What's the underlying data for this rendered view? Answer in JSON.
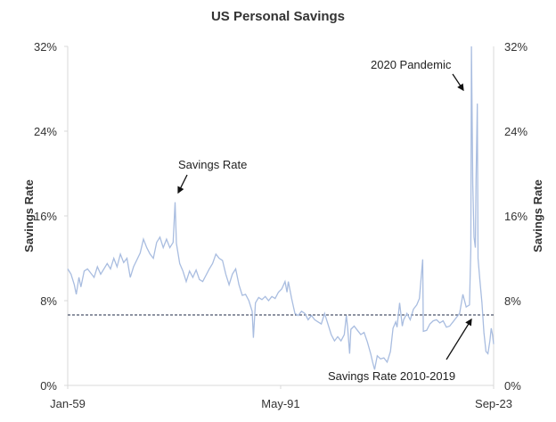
{
  "chart_data": {
    "type": "line",
    "title": "US Personal Savings",
    "ylabel": "Savings Rate",
    "ylabel_right": "Savings Rate",
    "ylim": [
      0,
      32
    ],
    "xlim": [
      1959.0,
      2023.67
    ],
    "yticks": [
      "0%",
      "8%",
      "16%",
      "24%",
      "32%"
    ],
    "ytick_values": [
      0,
      8,
      16,
      24,
      32
    ],
    "xticks": [
      "Jan-59",
      "May-91",
      "Sep-23"
    ],
    "xtick_values": [
      1959.0,
      1991.33,
      2023.67
    ],
    "grid": false,
    "series": [
      {
        "name": "Savings Rate",
        "color": "#a9bde0",
        "points": [
          [
            1959,
            11
          ],
          [
            1959.5,
            10.5
          ],
          [
            1960,
            9.5
          ],
          [
            1960.3,
            8.6
          ],
          [
            1960.7,
            10.2
          ],
          [
            1961,
            9.3
          ],
          [
            1961.5,
            10.8
          ],
          [
            1962,
            11
          ],
          [
            1962.5,
            10.6
          ],
          [
            1963,
            10.2
          ],
          [
            1963.5,
            11.2
          ],
          [
            1964,
            10.5
          ],
          [
            1965,
            11.5
          ],
          [
            1965.5,
            11
          ],
          [
            1966,
            12
          ],
          [
            1966.5,
            11.2
          ],
          [
            1967,
            12.4
          ],
          [
            1967.5,
            11.6
          ],
          [
            1968,
            12
          ],
          [
            1968.5,
            10.2
          ],
          [
            1969,
            11.2
          ],
          [
            1970,
            12.5
          ],
          [
            1970.5,
            13.8
          ],
          [
            1971,
            13
          ],
          [
            1971.5,
            12.4
          ],
          [
            1972,
            12
          ],
          [
            1972.5,
            13.5
          ],
          [
            1973,
            14
          ],
          [
            1973.5,
            13
          ],
          [
            1974,
            13.8
          ],
          [
            1974.5,
            13
          ],
          [
            1975,
            13.5
          ],
          [
            1975.3,
            17.3
          ],
          [
            1975.5,
            13.4
          ],
          [
            1976,
            11.5
          ],
          [
            1976.5,
            10.8
          ],
          [
            1977,
            9.8
          ],
          [
            1977.5,
            10.8
          ],
          [
            1978,
            10.2
          ],
          [
            1978.5,
            10.9
          ],
          [
            1979,
            10
          ],
          [
            1979.5,
            9.8
          ],
          [
            1980,
            10.4
          ],
          [
            1980.5,
            11
          ],
          [
            1981,
            11.5
          ],
          [
            1981.5,
            12.4
          ],
          [
            1982,
            12
          ],
          [
            1982.5,
            11.8
          ],
          [
            1983,
            10.5
          ],
          [
            1983.5,
            9.5
          ],
          [
            1984,
            10.5
          ],
          [
            1984.5,
            11
          ],
          [
            1985,
            9.5
          ],
          [
            1985.5,
            8.5
          ],
          [
            1986,
            8.6
          ],
          [
            1986.5,
            8
          ],
          [
            1987,
            7
          ],
          [
            1987.2,
            4.5
          ],
          [
            1987.5,
            7.8
          ],
          [
            1988,
            8.3
          ],
          [
            1988.5,
            8.1
          ],
          [
            1989,
            8.4
          ],
          [
            1989.5,
            8.0
          ],
          [
            1990,
            8.4
          ],
          [
            1990.5,
            8.2
          ],
          [
            1991,
            8.8
          ],
          [
            1991.5,
            9.1
          ],
          [
            1992,
            9.8
          ],
          [
            1992.3,
            8.8
          ],
          [
            1992.5,
            9.8
          ],
          [
            1993,
            8.2
          ],
          [
            1993.5,
            6.8
          ],
          [
            1994,
            6.6
          ],
          [
            1994.5,
            7
          ],
          [
            1995,
            6.8
          ],
          [
            1995.5,
            6.2
          ],
          [
            1996,
            6.6
          ],
          [
            1996.5,
            6.2
          ],
          [
            1997,
            6
          ],
          [
            1997.5,
            5.8
          ],
          [
            1998,
            6.8
          ],
          [
            1998.5,
            5.8
          ],
          [
            1999,
            4.8
          ],
          [
            1999.5,
            4.2
          ],
          [
            2000,
            4.6
          ],
          [
            2000.5,
            4.2
          ],
          [
            2001,
            4.8
          ],
          [
            2001.3,
            6.6
          ],
          [
            2001.5,
            5.5
          ],
          [
            2001.8,
            3
          ],
          [
            2002,
            5.3
          ],
          [
            2002.5,
            5.6
          ],
          [
            2003,
            5.2
          ],
          [
            2003.5,
            4.8
          ],
          [
            2004,
            5
          ],
          [
            2004.5,
            4.1
          ],
          [
            2005,
            3
          ],
          [
            2005.3,
            2.2
          ],
          [
            2005.6,
            1.5
          ],
          [
            2006,
            2.8
          ],
          [
            2006.5,
            2.5
          ],
          [
            2007,
            2.6
          ],
          [
            2007.5,
            2.2
          ],
          [
            2008,
            3.2
          ],
          [
            2008.4,
            5.4
          ],
          [
            2008.8,
            6
          ],
          [
            2009,
            5.5
          ],
          [
            2009.4,
            7.8
          ],
          [
            2009.8,
            5.6
          ],
          [
            2010,
            6.2
          ],
          [
            2010.5,
            6.8
          ],
          [
            2011,
            6.2
          ],
          [
            2011.5,
            7.2
          ],
          [
            2012,
            7.6
          ],
          [
            2012.4,
            8.2
          ],
          [
            2012.9,
            11.9
          ],
          [
            2013,
            5.1
          ],
          [
            2013.5,
            5.2
          ],
          [
            2014,
            5.8
          ],
          [
            2014.5,
            6.1
          ],
          [
            2015,
            6.2
          ],
          [
            2015.5,
            5.9
          ],
          [
            2016,
            6.1
          ],
          [
            2016.5,
            5.5
          ],
          [
            2017,
            5.6
          ],
          [
            2017.5,
            6
          ],
          [
            2018,
            6.4
          ],
          [
            2018.5,
            6.8
          ],
          [
            2019,
            8.6
          ],
          [
            2019.5,
            7.4
          ],
          [
            2020,
            7.6
          ],
          [
            2020.2,
            12.9
          ],
          [
            2020.3,
            32
          ],
          [
            2020.5,
            19
          ],
          [
            2020.7,
            14
          ],
          [
            2020.9,
            13
          ],
          [
            2021.0,
            19.5
          ],
          [
            2021.2,
            26.6
          ],
          [
            2021.3,
            12
          ],
          [
            2021.6,
            9.8
          ],
          [
            2021.9,
            7.8
          ],
          [
            2022.2,
            5
          ],
          [
            2022.5,
            3.2
          ],
          [
            2022.8,
            3
          ],
          [
            2023.1,
            4.2
          ],
          [
            2023.3,
            5.4
          ],
          [
            2023.5,
            4.8
          ],
          [
            2023.67,
            3.9
          ]
        ]
      }
    ],
    "reference_line": {
      "name": "Savings Rate 2010-2019",
      "value": 6.65,
      "style": "dashed"
    },
    "annotations": [
      {
        "text": "Savings Rate",
        "x": 1975.3,
        "y": 17.3
      },
      {
        "text": "2020 Pandemic",
        "x": 2020.3,
        "y": 28
      },
      {
        "text": "Savings Rate 2010-2019",
        "x": 2020.8,
        "y": 6.65
      }
    ]
  }
}
